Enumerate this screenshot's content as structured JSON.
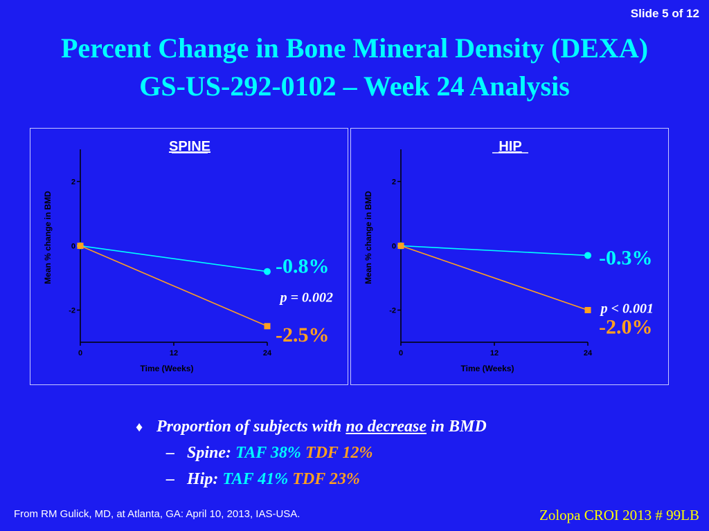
{
  "slide_number": "Slide 5 of 12",
  "title_line1": "Percent Change in Bone Mineral Density (DEXA)",
  "title_line2": "GS-US-292-0102 – Week 24 Analysis",
  "colors": {
    "background": "#1c1cf0",
    "title": "#00ffff",
    "taf": "#00ffff",
    "tdf": "#ffa020",
    "axis": "#000000"
  },
  "chart_data": [
    {
      "type": "line",
      "title": "SPINE",
      "xlabel": "Time (Weeks)",
      "ylabel": "Mean % change in BMD",
      "x_ticks": [
        "0",
        "12",
        "24"
      ],
      "y_ticks": [
        "2",
        "0",
        "-2"
      ],
      "xlim": [
        0,
        24
      ],
      "ylim": [
        -3,
        3
      ],
      "series": [
        {
          "x": [
            0,
            24
          ],
          "values": [
            0,
            -0.8
          ],
          "marker": "circle",
          "color": "#00ffff",
          "end_label": "-0.8%"
        },
        {
          "x": [
            0,
            24
          ],
          "values": [
            0,
            -2.5
          ],
          "marker": "square",
          "color": "#ffa020",
          "end_label": "-2.5%"
        }
      ],
      "annotation": "p = 0.002"
    },
    {
      "type": "line",
      "title": "HIP",
      "xlabel": "Time (Weeks)",
      "ylabel": "Mean % change in BMD",
      "x_ticks": [
        "0",
        "12",
        "24"
      ],
      "y_ticks": [
        "2",
        "0",
        "-2"
      ],
      "xlim": [
        0,
        24
      ],
      "ylim": [
        -3,
        3
      ],
      "series": [
        {
          "x": [
            0,
            24
          ],
          "values": [
            0,
            -0.3
          ],
          "marker": "circle",
          "color": "#00ffff",
          "end_label": "-0.3%"
        },
        {
          "x": [
            0,
            24
          ],
          "values": [
            0,
            -2.0
          ],
          "marker": "square",
          "color": "#ffa020",
          "end_label": "-2.0%"
        }
      ],
      "annotation": "p < 0.001"
    }
  ],
  "bullets": {
    "main_pre": "Proportion of subjects with ",
    "main_underlined": "no decrease",
    "main_post": " in BMD",
    "spine_label": "Spine: ",
    "spine_taf": "TAF 38%",
    "spine_tdf": "TDF 12%",
    "hip_label": "Hip: ",
    "hip_taf": "TAF 41%",
    "hip_tdf": "TDF 23%"
  },
  "footer_left": "From RM Gulick, MD, at Atlanta, GA: April 10, 2013, IAS-USA.",
  "footer_right": "Zolopa CROI 2013 # 99LB"
}
